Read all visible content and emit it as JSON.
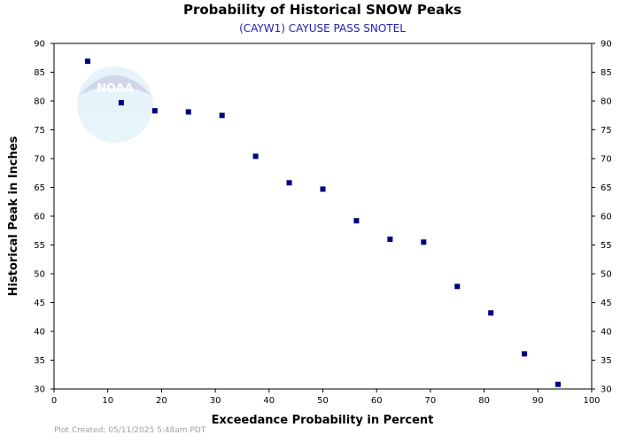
{
  "chart_data": {
    "type": "scatter",
    "title": "Probability of Historical SNOW Peaks",
    "subtitle": "(CAYW1) CAYUSE PASS SNOTEL",
    "xlabel": "Exceedance Probability in Percent",
    "ylabel": "Historical Peak in Inches",
    "xlim": [
      0,
      100
    ],
    "ylim": [
      30,
      90
    ],
    "x_ticks": [
      0,
      10,
      20,
      30,
      40,
      50,
      60,
      70,
      80,
      90,
      100
    ],
    "y_ticks": [
      30,
      35,
      40,
      45,
      50,
      55,
      60,
      65,
      70,
      75,
      80,
      85,
      90
    ],
    "grid": false,
    "marker_color": "#000080",
    "points": [
      {
        "x": 6.25,
        "y": 86.9
      },
      {
        "x": 12.5,
        "y": 79.7
      },
      {
        "x": 18.75,
        "y": 78.3
      },
      {
        "x": 25.0,
        "y": 78.1
      },
      {
        "x": 31.25,
        "y": 77.5
      },
      {
        "x": 37.5,
        "y": 70.4
      },
      {
        "x": 43.75,
        "y": 65.8
      },
      {
        "x": 50.0,
        "y": 64.7
      },
      {
        "x": 56.25,
        "y": 59.2
      },
      {
        "x": 62.5,
        "y": 56.0
      },
      {
        "x": 68.75,
        "y": 55.5
      },
      {
        "x": 75.0,
        "y": 47.8
      },
      {
        "x": 81.25,
        "y": 43.2
      },
      {
        "x": 87.5,
        "y": 36.1
      },
      {
        "x": 93.75,
        "y": 30.8
      }
    ]
  },
  "watermark": {
    "text": "NOAA",
    "name": "noaa-logo-watermark"
  },
  "footer": {
    "plot_created": "Plot Created: 05/11/2025 5:48am PDT"
  }
}
